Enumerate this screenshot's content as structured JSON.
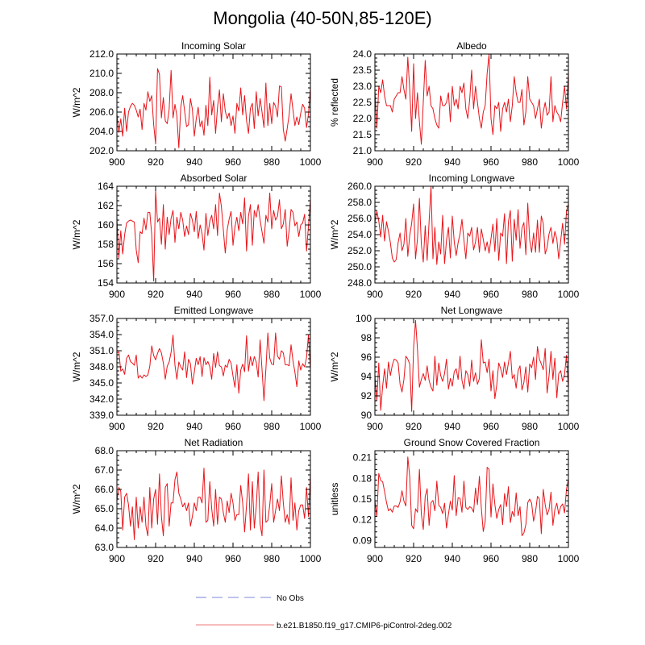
{
  "title": "Mongolia (40-50N,85-120E)",
  "legend": {
    "obs_label": "No Obs",
    "obs_color": "#aab0e6",
    "model_label": "b.e21.B1850.f19_g17.CMIP6-piControl-2deg.002",
    "model_color": "#f4a6a6"
  },
  "colors": {
    "series": "#e8141a",
    "axis": "#000000"
  },
  "chart_data": [
    {
      "type": "line",
      "title": "Incoming Solar",
      "ylabel": "W/m^2",
      "xlim": [
        900,
        1000
      ],
      "ylim": [
        202,
        212
      ],
      "xticks": [
        900,
        920,
        940,
        960,
        980,
        1000
      ],
      "yticks": [
        202,
        204,
        206,
        208,
        210,
        212
      ],
      "ytick_labels": [
        "202.0",
        "204.0",
        "206.0",
        "208.0",
        "210.0",
        "212.0"
      ],
      "x0": 900,
      "values": [
        205.8,
        203.9,
        205.3,
        203.5,
        206.4,
        204.0,
        206.0,
        206.6,
        206.9,
        206.7,
        206.2,
        205.5,
        206.3,
        204.2,
        206.9,
        206.2,
        208.1,
        207.1,
        207.7,
        204.7,
        202.7,
        210.5,
        209.9,
        205.4,
        207.5,
        205.1,
        204.8,
        206.3,
        210.3,
        205.4,
        206.8,
        205.6,
        202.3,
        206.5,
        207.7,
        206.1,
        204.5,
        204.7,
        207.4,
        206.3,
        203.5,
        205.3,
        206.5,
        204.5,
        205.1,
        203.6,
        206.7,
        204.6,
        209.6,
        205.7,
        207.2,
        203.8,
        206.5,
        208.3,
        205.0,
        207.9,
        206.1,
        205.3,
        205.9,
        204.6,
        205.6,
        203.8,
        206.9,
        206.1,
        208.5,
        205.7,
        207.7,
        205.1,
        203.8,
        206.4,
        206.9,
        204.3,
        208.1,
        205.6,
        207.4,
        206.0,
        204.4,
        209.0,
        204.6,
        206.9,
        204.8,
        207.0,
        206.6,
        205.5,
        208.7,
        208.6,
        204.2,
        203.0,
        204.3,
        205.7,
        207.9,
        206.2,
        204.6,
        205.5,
        204.7,
        205.9,
        206.8,
        206.4,
        204.4,
        205.8,
        208.5
      ]
    },
    {
      "type": "line",
      "title": "Albedo",
      "ylabel": "% reflected",
      "xlim": [
        900,
        1000
      ],
      "ylim": [
        21,
        24
      ],
      "xticks": [
        900,
        920,
        940,
        960,
        980,
        1000
      ],
      "yticks": [
        21,
        21.5,
        22,
        22.5,
        23,
        23.5,
        24
      ],
      "ytick_labels": [
        "21.0",
        "21.5",
        "22.0",
        "22.5",
        "23.0",
        "23.5",
        "24.0"
      ],
      "x0": 900,
      "values": [
        22.9,
        21.7,
        23.0,
        22.8,
        23.2,
        22.7,
        22.4,
        22.4,
        22.4,
        22.2,
        22.6,
        22.7,
        22.8,
        22.8,
        23.3,
        22.9,
        22.6,
        23.9,
        22.9,
        21.6,
        23.7,
        22.0,
        22.8,
        21.9,
        21.2,
        22.5,
        23.8,
        22.7,
        23.0,
        22.4,
        22.3,
        22.0,
        21.8,
        21.7,
        22.7,
        22.4,
        22.4,
        22.5,
        22.8,
        21.9,
        23.0,
        22.4,
        22.6,
        22.3,
        23.0,
        22.8,
        23.1,
        22.3,
        22.0,
        22.6,
        23.5,
        22.3,
        23.0,
        22.5,
        22.0,
        21.7,
        22.2,
        22.4,
        23.4,
        24.0,
        22.0,
        21.5,
        22.4,
        22.3,
        22.5,
        21.6,
        22.3,
        22.5,
        22.2,
        22.6,
        21.9,
        22.4,
        23.3,
        22.8,
        22.5,
        22.5,
        22.9,
        21.8,
        22.2,
        23.3,
        22.6,
        22.5,
        22.4,
        22.0,
        22.3,
        22.6,
        21.7,
        22.2,
        22.5,
        22.1,
        22.2,
        23.3,
        21.9,
        22.4,
        22.2,
        22.1,
        21.9,
        22.5,
        23.0,
        22.3,
        23.4
      ]
    },
    {
      "type": "line",
      "title": "Absorbed Solar",
      "ylabel": "W/m^2",
      "xlim": [
        900,
        1000
      ],
      "ylim": [
        154,
        164
      ],
      "xticks": [
        900,
        920,
        940,
        960,
        980,
        1000
      ],
      "yticks": [
        154,
        156,
        158,
        160,
        162,
        164
      ],
      "ytick_labels": [
        "154",
        "156",
        "158",
        "160",
        "162",
        "164"
      ],
      "x0": 900,
      "values": [
        160.7,
        156.6,
        159.4,
        157.0,
        159.0,
        160.2,
        160.4,
        160.5,
        160.4,
        160.3,
        157.4,
        156.1,
        159.3,
        159.1,
        160.7,
        159.5,
        161.3,
        161.3,
        159.0,
        154.2,
        163.5,
        160.3,
        160.7,
        158.0,
        162.1,
        157.5,
        160.8,
        159.0,
        160.7,
        161.5,
        158.2,
        160.8,
        159.6,
        161.3,
        160.5,
        158.8,
        159.9,
        159.0,
        161.2,
        160.5,
        159.3,
        161.4,
        158.6,
        160.0,
        159.1,
        157.4,
        161.2,
        158.9,
        160.4,
        161.0,
        159.6,
        162.1,
        158.9,
        163.3,
        161.9,
        159.5,
        157.1,
        159.5,
        160.6,
        161.4,
        157.9,
        159.8,
        160.8,
        159.4,
        161.3,
        160.1,
        162.8,
        157.3,
        160.9,
        162.1,
        157.9,
        161.5,
        160.8,
        162.1,
        160.5,
        159.3,
        158.1,
        161.0,
        160.3,
        163.3,
        159.6,
        161.5,
        160.5,
        160.9,
        162.6,
        159.6,
        160.1,
        161.6,
        157.8,
        159.4,
        161.6,
        161.3,
        159.9,
        160.3,
        158.8,
        160.0,
        160.2,
        161.1,
        157.3,
        159.9,
        162.6
      ]
    },
    {
      "type": "line",
      "title": "Incoming Longwave",
      "ylabel": "W/m^2",
      "xlim": [
        900,
        1000
      ],
      "ylim": [
        248,
        260
      ],
      "xticks": [
        900,
        920,
        940,
        960,
        980,
        1000
      ],
      "yticks": [
        248,
        250,
        252,
        254,
        256,
        258,
        260
      ],
      "ytick_labels": [
        "248.0",
        "250.0",
        "252.0",
        "254.0",
        "256.0",
        "258.0",
        "260.0"
      ],
      "x0": 900,
      "values": [
        255.5,
        256.9,
        255.7,
        253.7,
        256.4,
        253.2,
        255.6,
        254.4,
        253.0,
        251.1,
        250.6,
        250.9,
        253.0,
        254.2,
        252.0,
        252.8,
        256.0,
        251.3,
        253.9,
        255.4,
        257.8,
        251.0,
        253.5,
        258.5,
        252.8,
        250.6,
        255.1,
        250.8,
        255.6,
        260.0,
        251.0,
        254.9,
        250.3,
        253.1,
        251.6,
        256.4,
        250.4,
        253.3,
        254.9,
        251.1,
        256.3,
        253.1,
        251.4,
        253.0,
        254.1,
        255.9,
        253.3,
        251.0,
        254.2,
        253.8,
        254.9,
        252.1,
        253.1,
        254.9,
        251.8,
        254.7,
        253.4,
        252.0,
        253.1,
        251.7,
        253.5,
        255.3,
        251.9,
        256.0,
        250.8,
        254.2,
        253.8,
        256.6,
        250.4,
        255.6,
        257.0,
        250.7,
        255.9,
        253.3,
        257.1,
        252.3,
        254.8,
        255.5,
        251.5,
        257.9,
        253.3,
        251.8,
        254.2,
        251.8,
        255.8,
        251.8,
        256.3,
        255.4,
        251.6,
        252.4,
        254.1,
        254.9,
        252.9,
        254.4,
        253.5,
        251.0,
        253.2,
        255.4,
        252.8,
        256.9,
        257.8
      ]
    },
    {
      "type": "line",
      "title": "Emitted Longwave",
      "ylabel": "W/m^2",
      "xlim": [
        900,
        1000
      ],
      "ylim": [
        339,
        357
      ],
      "xticks": [
        900,
        920,
        940,
        960,
        980,
        1000
      ],
      "yticks": [
        339,
        342,
        345,
        348,
        351,
        354,
        357
      ],
      "ytick_labels": [
        "339.0",
        "342.0",
        "345.0",
        "348.0",
        "351.0",
        "354.0",
        "357.0"
      ],
      "x0": 900,
      "values": [
        350.6,
        350.8,
        347.2,
        347.6,
        346.6,
        349.6,
        350.2,
        349.0,
        348.7,
        348.3,
        350.2,
        345.9,
        346.4,
        345.9,
        346.5,
        346.2,
        346.5,
        348.1,
        351.9,
        350.1,
        349.3,
        350.5,
        351.4,
        350.6,
        348.7,
        345.7,
        348.1,
        348.9,
        350.7,
        353.9,
        348.3,
        345.7,
        348.9,
        348.0,
        347.4,
        350.8,
        346.0,
        349.4,
        348.6,
        344.8,
        347.0,
        349.6,
        348.4,
        349.9,
        346.2,
        349.7,
        348.4,
        349.0,
        348.0,
        345.7,
        350.5,
        347.9,
        350.8,
        348.2,
        348.0,
        346.3,
        348.3,
        347.9,
        349.4,
        348.7,
        346.3,
        344.2,
        348.4,
        343.1,
        347.4,
        348.5,
        347.1,
        353.8,
        347.2,
        349.9,
        348.2,
        349.9,
        348.9,
        346.1,
        353.0,
        347.5,
        341.7,
        347.6,
        354.3,
        349.6,
        348.5,
        348.4,
        354.3,
        350.0,
        349.4,
        351.0,
        350.6,
        348.4,
        348.4,
        348.2,
        352.1,
        349.1,
        347.0,
        344.3,
        349.1,
        347.4,
        348.6,
        348.0,
        349.7,
        354.0,
        347.4
      ]
    },
    {
      "type": "line",
      "title": "Net Longwave",
      "ylabel": "W/m^2",
      "xlim": [
        900,
        1000
      ],
      "ylim": [
        90,
        100
      ],
      "xticks": [
        900,
        920,
        940,
        960,
        980,
        1000
      ],
      "yticks": [
        90,
        92,
        94,
        96,
        98,
        100
      ],
      "ytick_labels": [
        "90",
        "92",
        "94",
        "96",
        "98",
        "100"
      ],
      "x0": 900,
      "values": [
        94.1,
        91.5,
        95.4,
        90.5,
        93.0,
        94.8,
        92.8,
        95.5,
        94.1,
        95.2,
        95.8,
        95.7,
        95.4,
        93.2,
        92.4,
        93.7,
        96.1,
        95.8,
        95.3,
        90.4,
        97.0,
        99.8,
        96.8,
        92.9,
        93.7,
        94.3,
        93.6,
        95.1,
        93.6,
        92.9,
        92.5,
        96.1,
        93.1,
        95.4,
        94.1,
        93.5,
        94.3,
        95.8,
        92.7,
        93.8,
        93.0,
        94.5,
        94.8,
        93.7,
        96.1,
        93.6,
        92.7,
        94.6,
        94.2,
        93.0,
        95.7,
        93.5,
        94.4,
        93.2,
        93.8,
        97.8,
        95.4,
        95.5,
        94.4,
        95.8,
        92.5,
        94.6,
        91.7,
        93.2,
        95.4,
        94.8,
        93.9,
        95.5,
        94.2,
        95.4,
        96.6,
        93.8,
        94.2,
        92.8,
        94.6,
        95.1,
        92.6,
        93.4,
        95.0,
        92.4,
        95.3,
        94.9,
        96.0,
        93.7,
        97.1,
        95.8,
        95.3,
        94.7,
        96.9,
        92.3,
        94.1,
        96.6,
        93.7,
        95.9,
        91.8,
        94.3,
        94.6,
        93.5,
        94.2,
        96.2,
        92.7
      ]
    },
    {
      "type": "line",
      "title": "Net Radiation",
      "ylabel": "W/m^2",
      "xlim": [
        900,
        1000
      ],
      "ylim": [
        63,
        68
      ],
      "xticks": [
        900,
        920,
        940,
        960,
        980,
        1000
      ],
      "yticks": [
        63,
        64,
        65,
        66,
        67,
        68
      ],
      "ytick_labels": [
        "63.0",
        "64.0",
        "65.0",
        "66.0",
        "67.0",
        "68.0"
      ],
      "x0": 900,
      "values": [
        65.4,
        66.1,
        65.9,
        63.9,
        65.6,
        65.8,
        65.2,
        64.1,
        65.1,
        63.4,
        65.6,
        64.0,
        65.1,
        64.3,
        65.6,
        64.1,
        63.6,
        66.1,
        64.0,
        65.5,
        66.0,
        64.2,
        66.8,
        64.6,
        63.6,
        66.1,
        66.3,
        64.1,
        65.3,
        65.3,
        66.5,
        66.9,
        65.8,
        65.5,
        65.1,
        65.3,
        64.9,
        65.3,
        64.1,
        64.6,
        65.3,
        64.9,
        65.6,
        65.6,
        65.3,
        67.1,
        64.3,
        64.4,
        66.4,
        65.0,
        64.1,
        66.0,
        64.2,
        65.6,
        65.5,
        64.8,
        64.3,
        65.4,
        64.8,
        65.8,
        65.3,
        64.4,
        64.7,
        64.7,
        66.2,
        65.3,
        63.8,
        65.2,
        66.8,
        63.9,
        66.4,
        64.0,
        65.1,
        66.9,
        64.2,
        63.6,
        67.0,
        64.3,
        64.4,
        65.2,
        66.3,
        64.3,
        64.9,
        65.5,
        64.9,
        66.7,
        65.3,
        64.3,
        64.7,
        64.2,
        66.6,
        64.4,
        65.3,
        63.9,
        64.9,
        65.2,
        65.2,
        64.5,
        66.1,
        64.6,
        66.8
      ]
    },
    {
      "type": "line",
      "title": "Ground Snow Covered Fraction",
      "ylabel": "unitless",
      "xlim": [
        900,
        1000
      ],
      "ylim": [
        0.08,
        0.22
      ],
      "xticks": [
        900,
        920,
        940,
        960,
        980,
        1000
      ],
      "yticks": [
        0.09,
        0.12,
        0.15,
        0.18,
        0.21
      ],
      "ytick_labels": [
        "0.09",
        "0.12",
        "0.15",
        "0.18",
        "0.21"
      ],
      "x0": 900,
      "values": [
        0.148,
        0.125,
        0.187,
        0.177,
        0.175,
        0.161,
        0.145,
        0.133,
        0.136,
        0.131,
        0.14,
        0.14,
        0.138,
        0.146,
        0.162,
        0.147,
        0.14,
        0.211,
        0.182,
        0.112,
        0.107,
        0.136,
        0.131,
        0.193,
        0.128,
        0.106,
        0.154,
        0.165,
        0.112,
        0.145,
        0.148,
        0.133,
        0.176,
        0.141,
        0.138,
        0.129,
        0.144,
        0.108,
        0.128,
        0.147,
        0.134,
        0.184,
        0.126,
        0.152,
        0.151,
        0.131,
        0.176,
        0.138,
        0.135,
        0.139,
        0.137,
        0.131,
        0.166,
        0.142,
        0.183,
        0.137,
        0.103,
        0.118,
        0.196,
        0.193,
        0.124,
        0.172,
        0.142,
        0.122,
        0.135,
        0.142,
        0.113,
        0.158,
        0.139,
        0.168,
        0.116,
        0.132,
        0.125,
        0.159,
        0.126,
        0.139,
        0.097,
        0.101,
        0.113,
        0.145,
        0.15,
        0.144,
        0.118,
        0.131,
        0.154,
        0.15,
        0.1,
        0.164,
        0.142,
        0.127,
        0.135,
        0.16,
        0.112,
        0.135,
        0.144,
        0.128,
        0.139,
        0.143,
        0.13,
        0.164,
        0.179
      ]
    }
  ]
}
